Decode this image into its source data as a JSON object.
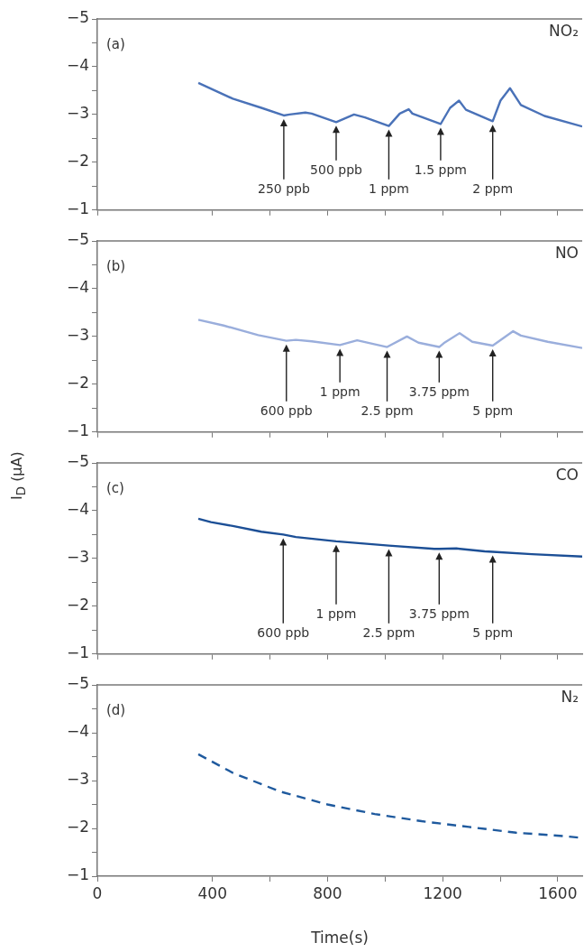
{
  "chart_data": [
    {
      "type": "line",
      "annotations": [
        "(a)",
        {
          "text": "250 ppb",
          "x": 648,
          "y": -2.98
        },
        {
          "text": "500 ppb",
          "x": 830,
          "y": -2.84
        },
        {
          "text": "1 ppm",
          "x": 1013,
          "y": -2.76
        },
        {
          "text": "1.5 ppm",
          "x": 1193,
          "y": -2.8
        },
        {
          "text": "2 ppm",
          "x": 1374,
          "y": -2.86
        }
      ],
      "series": [
        {
          "name": "NO₂",
          "color": "#4a72b8",
          "x": [
            351,
            471,
            570,
            648,
            668,
            723,
            745,
            830,
            892,
            930,
            1013,
            1051,
            1082,
            1095,
            1193,
            1226,
            1257,
            1281,
            1374,
            1401,
            1434,
            1472,
            1554,
            1685
          ],
          "values": [
            -3.66,
            -3.33,
            -3.14,
            -2.98,
            -3.0,
            -3.04,
            -3.02,
            -2.84,
            -3.0,
            -2.94,
            -2.76,
            -3.02,
            -3.11,
            -3.02,
            -2.8,
            -3.14,
            -3.29,
            -3.1,
            -2.86,
            -3.29,
            -3.55,
            -3.2,
            -2.97,
            -2.75
          ]
        }
      ],
      "xlim": [
        0,
        1685
      ],
      "xticks": [
        {
          "value": 0,
          "label": null
        },
        {
          "value": 400,
          "label": null
        },
        {
          "value": 600,
          "label": null
        },
        {
          "value": 800,
          "label": null
        },
        {
          "value": 1000,
          "label": null
        },
        {
          "value": 1200,
          "label": null
        },
        {
          "value": 1400,
          "label": null
        },
        {
          "value": 1600,
          "label": null
        }
      ],
      "ylim": [
        -1,
        -5
      ],
      "yticks": [
        -5,
        {
          "value": -4.5,
          "label": null
        },
        -4,
        {
          "value": -3.5,
          "label": null
        },
        -3,
        {
          "value": -2.5,
          "label": null
        },
        -2,
        {
          "value": -1.5,
          "label": null
        },
        -1
      ],
      "tick_labels": "y",
      "grid": false,
      "legend": false,
      "marker": "none",
      "line_style": "solid"
    },
    {
      "type": "line",
      "annotations": [
        "(b)",
        {
          "text": "600 ppb",
          "x": 657,
          "y": -2.91
        },
        {
          "text": "1 ppm",
          "x": 843,
          "y": -2.82
        },
        {
          "text": "2.5 ppm",
          "x": 1007,
          "y": -2.78
        },
        {
          "text": "3.75 ppm",
          "x": 1188,
          "y": -2.78
        },
        {
          "text": "5 ppm",
          "x": 1374,
          "y": -2.81
        }
      ],
      "series": [
        {
          "name": "NO",
          "color": "#9aaedc",
          "x": [
            351,
            439,
            559,
            657,
            690,
            745,
            843,
            903,
            1007,
            1076,
            1116,
            1188,
            1204,
            1259,
            1303,
            1374,
            1445,
            1472,
            1565,
            1685
          ],
          "values": [
            -3.35,
            -3.23,
            -3.03,
            -2.91,
            -2.93,
            -2.9,
            -2.82,
            -2.92,
            -2.78,
            -3.0,
            -2.87,
            -2.78,
            -2.86,
            -3.07,
            -2.89,
            -2.81,
            -3.11,
            -3.02,
            -2.89,
            -2.76
          ]
        }
      ],
      "xlim": [
        0,
        1685
      ],
      "xticks": [
        {
          "value": 0,
          "label": null
        },
        {
          "value": 400,
          "label": null
        },
        {
          "value": 600,
          "label": null
        },
        {
          "value": 800,
          "label": null
        },
        {
          "value": 1000,
          "label": null
        },
        {
          "value": 1200,
          "label": null
        },
        {
          "value": 1400,
          "label": null
        },
        {
          "value": 1600,
          "label": null
        }
      ],
      "ylim": [
        -1,
        -5
      ],
      "yticks": [
        -5,
        {
          "value": -4.5,
          "label": null
        },
        -4,
        {
          "value": -3.5,
          "label": null
        },
        -3,
        {
          "value": -2.5,
          "label": null
        },
        -2,
        {
          "value": -1.5,
          "label": null
        },
        -1
      ],
      "tick_labels": "y",
      "grid": false,
      "legend": false,
      "marker": "none",
      "line_style": "solid"
    },
    {
      "type": "line",
      "ylabel": "I$_{D}$ (μA)",
      "annotations": [
        "(c)",
        {
          "text": "600 ppb",
          "x": 646,
          "y": -3.5
        },
        {
          "text": "1 ppm",
          "x": 830,
          "y": -3.36
        },
        {
          "text": "2.5 ppm",
          "x": 1013,
          "y": -3.27
        },
        {
          "text": "3.75 ppm",
          "x": 1188,
          "y": -3.2
        },
        {
          "text": "5 ppm",
          "x": 1374,
          "y": -3.14
        }
      ],
      "series": [
        {
          "name": "CO",
          "color": "#1c4f96",
          "x": [
            351,
            395,
            471,
            570,
            646,
            690,
            830,
            1013,
            1171,
            1188,
            1248,
            1346,
            1374,
            1510,
            1685
          ],
          "values": [
            -3.83,
            -3.76,
            -3.68,
            -3.56,
            -3.5,
            -3.45,
            -3.36,
            -3.27,
            -3.2,
            -3.2,
            -3.21,
            -3.15,
            -3.14,
            -3.09,
            -3.04
          ]
        }
      ],
      "xlim": [
        0,
        1685
      ],
      "xticks": [
        {
          "value": 0,
          "label": null
        },
        {
          "value": 400,
          "label": null
        },
        {
          "value": 600,
          "label": null
        },
        {
          "value": 800,
          "label": null
        },
        {
          "value": 1000,
          "label": null
        },
        {
          "value": 1200,
          "label": null
        },
        {
          "value": 1400,
          "label": null
        },
        {
          "value": 1600,
          "label": null
        }
      ],
      "ylim": [
        -1,
        -5
      ],
      "yticks": [
        -5,
        {
          "value": -4.5,
          "label": null
        },
        -4,
        {
          "value": -3.5,
          "label": null
        },
        -3,
        {
          "value": -2.5,
          "label": null
        },
        -2,
        {
          "value": -1.5,
          "label": null
        },
        -1
      ],
      "tick_labels": "y",
      "grid": false,
      "legend": false,
      "marker": "none",
      "line_style": "solid"
    },
    {
      "type": "line",
      "xlabel": "Time(s)",
      "annotations": [
        "(d)"
      ],
      "series": [
        {
          "name": "N₂",
          "color": "#1f5a9e",
          "line_style": "dashed",
          "x": [
            351,
            471,
            635,
            800,
            964,
            1127,
            1291,
            1455,
            1619,
            1685
          ],
          "values": [
            -3.55,
            -3.16,
            -2.77,
            -2.5,
            -2.3,
            -2.15,
            -2.03,
            -1.91,
            -1.84,
            -1.8
          ]
        }
      ],
      "xlim": [
        0,
        1685
      ],
      "xticks": [
        0,
        400,
        {
          "value": 600,
          "label": null
        },
        800,
        {
          "value": 1000,
          "label": null
        },
        1200,
        {
          "value": 1400,
          "label": null
        },
        1600
      ],
      "ylim": [
        -1,
        -5
      ],
      "yticks": [
        -5,
        {
          "value": -4.5,
          "label": null
        },
        -4,
        {
          "value": -3.5,
          "label": null
        },
        -3,
        {
          "value": -2.5,
          "label": null
        },
        -2,
        {
          "value": -1.5,
          "label": null
        },
        -1
      ],
      "grid": false,
      "legend": false,
      "marker": "none"
    }
  ]
}
